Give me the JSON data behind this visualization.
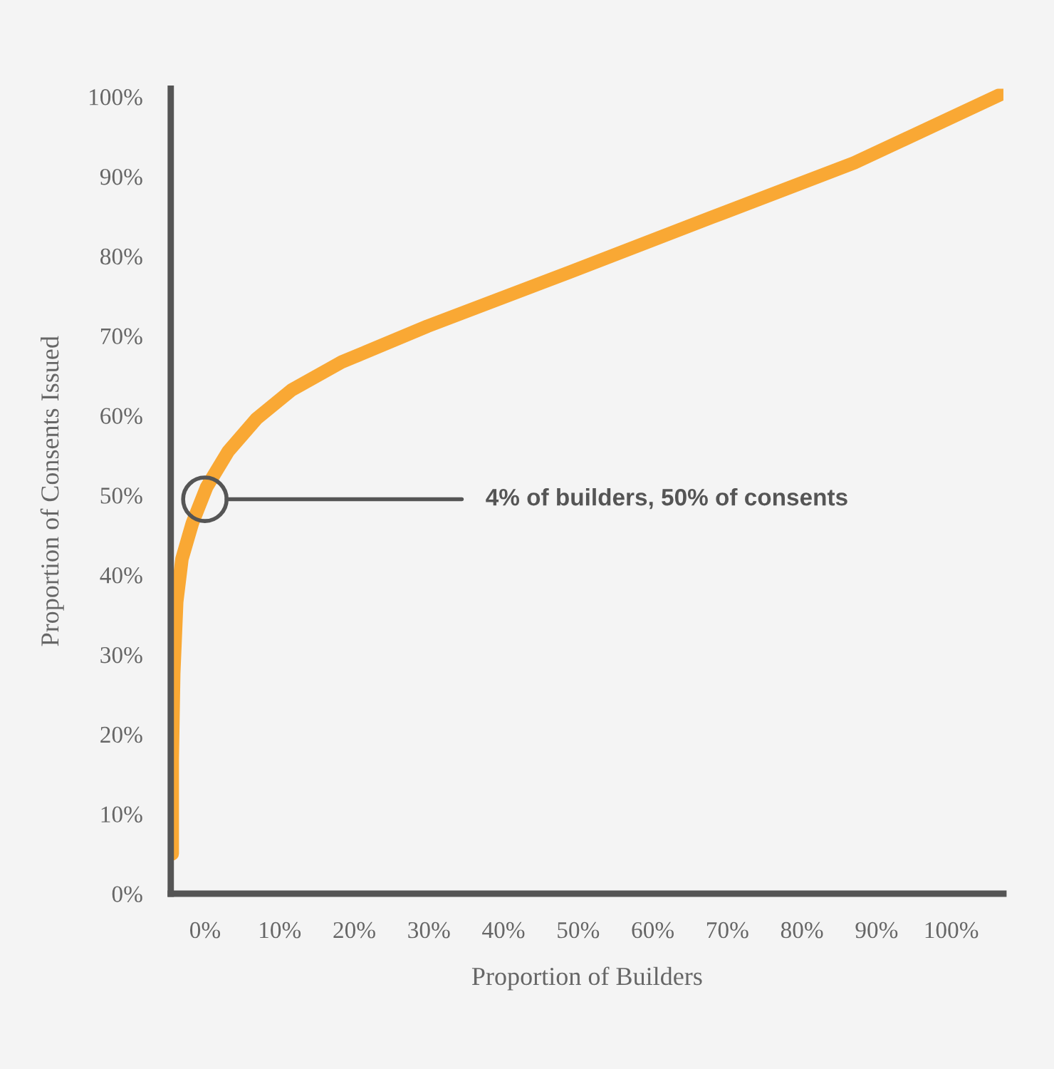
{
  "chart_data": {
    "type": "line",
    "xlabel": "Proportion of Builders",
    "ylabel": "Proportion of Consents Issued",
    "x": [
      -4.4,
      -4.4,
      -4.2,
      -3.8,
      -3.1,
      -1.7,
      0.2,
      3.1,
      6.9,
      11.6,
      18.3,
      29.8,
      48.9,
      68,
      87,
      106.9
    ],
    "series": [
      {
        "color": "#f9a834",
        "values": [
          5.0,
          16.8,
          27.6,
          36.6,
          42,
          46.5,
          51,
          55.5,
          59.6,
          63.2,
          66.7,
          71.2,
          78,
          84.9,
          91.7,
          100.4
        ]
      }
    ],
    "xlim": [
      -4.6,
      107
    ],
    "ylim": [
      0,
      101
    ],
    "xticks": [
      {
        "value": 0,
        "label": "0%"
      },
      {
        "value": 10,
        "label": "10%"
      },
      {
        "value": 20,
        "label": "20%"
      },
      {
        "value": 30,
        "label": "30%"
      },
      {
        "value": 40,
        "label": "40%"
      },
      {
        "value": 50,
        "label": "50%"
      },
      {
        "value": 60,
        "label": "60%"
      },
      {
        "value": 70,
        "label": "70%"
      },
      {
        "value": 80,
        "label": "80%"
      },
      {
        "value": 90,
        "label": "90%"
      },
      {
        "value": 100,
        "label": "100%"
      }
    ],
    "yticks": [
      {
        "value": 0,
        "label": "0%"
      },
      {
        "value": 10,
        "label": "10%"
      },
      {
        "value": 20,
        "label": "20%"
      },
      {
        "value": 30,
        "label": "30%"
      },
      {
        "value": 40,
        "label": "40%"
      },
      {
        "value": 50,
        "label": "50%"
      },
      {
        "value": 60,
        "label": "60%"
      },
      {
        "value": 70,
        "label": "70%"
      },
      {
        "value": 80,
        "label": "80%"
      },
      {
        "value": 90,
        "label": "90%"
      },
      {
        "value": 100,
        "label": "100%"
      }
    ],
    "grid": false,
    "legend": false,
    "marker": "none",
    "line_style": "solid",
    "annotations": [
      "4% of builders, 50% of consents"
    ]
  }
}
